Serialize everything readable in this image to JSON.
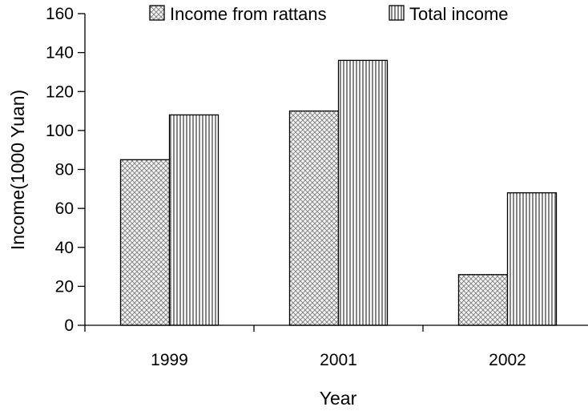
{
  "chart_data": {
    "type": "bar",
    "title": "",
    "xlabel": "Year",
    "ylabel": "Income(1000 Yuan)",
    "categories": [
      "1999",
      "2001",
      "2002"
    ],
    "series": [
      {
        "name": "Income from rattans",
        "values": [
          85,
          110,
          26
        ],
        "pattern": "crosshatch"
      },
      {
        "name": "Total income",
        "values": [
          108,
          136,
          68
        ],
        "pattern": "vertical-lines"
      }
    ],
    "ylim": [
      0,
      160
    ],
    "yticks": [
      0,
      20,
      40,
      60,
      80,
      100,
      120,
      140,
      160
    ],
    "grid": false,
    "legend_position": "top"
  }
}
